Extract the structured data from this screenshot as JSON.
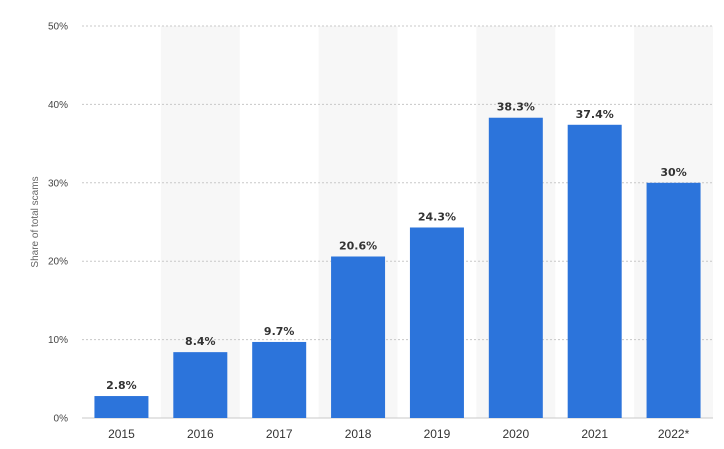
{
  "chart_data": {
    "type": "bar",
    "categories": [
      "2015",
      "2016",
      "2017",
      "2018",
      "2019",
      "2020",
      "2021",
      "2022*"
    ],
    "values": [
      2.8,
      8.4,
      9.7,
      20.6,
      24.3,
      38.3,
      37.4,
      30
    ],
    "value_labels": [
      "2.8%",
      "8.4%",
      "9.7%",
      "20.6%",
      "24.3%",
      "38.3%",
      "37.4%",
      "30%"
    ],
    "title": "",
    "xlabel": "",
    "ylabel": "Share of total scams",
    "ylim": [
      0,
      50
    ],
    "y_ticks": [
      0,
      10,
      20,
      30,
      40,
      50
    ],
    "y_tick_labels": [
      "0%",
      "10%",
      "20%",
      "30%",
      "40%",
      "50%"
    ],
    "grid": true,
    "legend": false,
    "alternating_column_shading": true,
    "colors": {
      "bar": "#2c74db",
      "band": "#f7f7f7",
      "grid": "#c8c8c8",
      "text": "#333333"
    }
  }
}
